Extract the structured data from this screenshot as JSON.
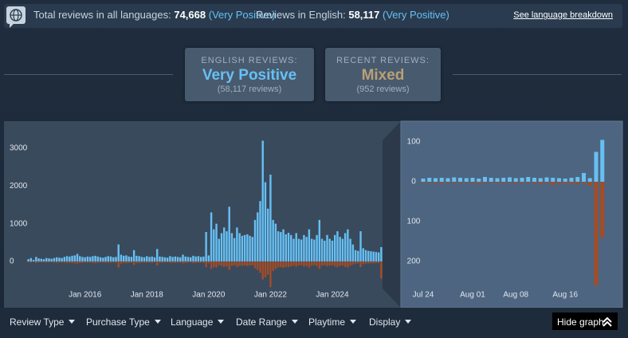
{
  "summary_bar": {
    "total_label": "Total reviews in all languages:",
    "total_count": "74,668",
    "total_rating": "(Very Positive)",
    "english_label": "Reviews in English:",
    "english_count": "58,117",
    "english_rating": "(Very Positive)",
    "breakdown_link": "See language breakdown"
  },
  "review_boxes": [
    {
      "heading": "ENGLISH REVIEWS:",
      "rating": "Very Positive",
      "count": "(58,117 reviews)"
    },
    {
      "heading": "RECENT REVIEWS:",
      "rating": "Mixed",
      "count": "(952 reviews)"
    }
  ],
  "filters": [
    "Review Type",
    "Purchase Type",
    "Language",
    "Date Range",
    "Playtime",
    "Display"
  ],
  "hide_graph": "Hide graph",
  "chart_data": [
    {
      "type": "bar",
      "x": [
        "2014-03",
        "2014-04",
        "2014-05",
        "2014-06",
        "2014-07",
        "2014-08",
        "2014-09",
        "2014-10",
        "2014-11",
        "2014-12",
        "2015-01",
        "2015-02",
        "2015-03",
        "2015-04",
        "2015-05",
        "2015-06",
        "2015-07",
        "2015-08",
        "2015-09",
        "2015-10",
        "2015-11",
        "2015-12",
        "2016-01",
        "2016-02",
        "2016-03",
        "2016-04",
        "2016-05",
        "2016-06",
        "2016-07",
        "2016-08",
        "2016-09",
        "2016-10",
        "2016-11",
        "2016-12",
        "2017-01",
        "2017-02",
        "2017-03",
        "2017-04",
        "2017-05",
        "2017-06",
        "2017-07",
        "2017-08",
        "2017-09",
        "2017-10",
        "2017-11",
        "2017-12",
        "2018-01",
        "2018-02",
        "2018-03",
        "2018-04",
        "2018-05",
        "2018-06",
        "2018-07",
        "2018-08",
        "2018-09",
        "2018-10",
        "2018-11",
        "2018-12",
        "2019-01",
        "2019-02",
        "2019-03",
        "2019-04",
        "2019-05",
        "2019-06",
        "2019-07",
        "2019-08",
        "2019-09",
        "2019-10",
        "2019-11",
        "2019-12",
        "2020-01",
        "2020-02",
        "2020-03",
        "2020-04",
        "2020-05",
        "2020-06",
        "2020-07",
        "2020-08",
        "2020-09",
        "2020-10",
        "2020-11",
        "2020-12",
        "2021-01",
        "2021-02",
        "2021-03",
        "2021-04",
        "2021-05",
        "2021-06",
        "2021-07",
        "2021-08",
        "2021-09",
        "2021-10",
        "2021-11",
        "2021-12",
        "2022-01",
        "2022-02",
        "2022-03",
        "2022-04",
        "2022-05",
        "2022-06",
        "2022-07",
        "2022-08",
        "2022-09",
        "2022-10",
        "2022-11",
        "2022-12",
        "2023-01",
        "2023-02",
        "2023-03",
        "2023-04",
        "2023-05",
        "2023-06",
        "2023-07",
        "2023-08",
        "2023-09",
        "2023-10",
        "2023-11",
        "2023-12",
        "2024-01",
        "2024-02",
        "2024-03",
        "2024-04",
        "2024-05",
        "2024-06",
        "2024-07",
        "2024-08",
        "2024-09",
        "2024-10",
        "2024-11",
        "2024-12",
        "2025-01",
        "2025-02",
        "2025-03",
        "2025-04",
        "2025-05",
        "2025-06",
        "2025-07",
        "2025-08"
      ],
      "series": [
        {
          "color": "#66c0f4",
          "values": [
            60,
            90,
            40,
            120,
            80,
            70,
            60,
            90,
            80,
            70,
            90,
            110,
            100,
            90,
            120,
            140,
            130,
            150,
            160,
            200,
            140,
            120,
            110,
            130,
            120,
            140,
            150,
            130,
            110,
            100,
            120,
            140,
            130,
            110,
            120,
            450,
            180,
            150,
            160,
            130,
            120,
            300,
            150,
            140,
            120,
            110,
            140,
            120,
            130,
            110,
            330,
            130,
            120,
            110,
            100,
            140,
            120,
            130,
            120,
            110,
            180,
            130,
            120,
            110,
            150,
            130,
            140,
            120,
            130,
            780,
            160,
            1300,
            850,
            1000,
            600,
            750,
            900,
            800,
            1450,
            750,
            620,
            900,
            750,
            680,
            700,
            720,
            680,
            650,
            1100,
            1300,
            1600,
            3200,
            2100,
            1400,
            2300,
            1100,
            1000,
            800,
            780,
            850,
            720,
            760,
            700,
            600,
            750,
            600,
            580,
            700,
            650,
            850,
            600,
            580,
            700,
            1100,
            600,
            550,
            700,
            600,
            550,
            700,
            800,
            650,
            600,
            750,
            850,
            600,
            450,
            300,
            280,
            800,
            350,
            300,
            280,
            270,
            260,
            250,
            240,
            380
          ]
        },
        {
          "color": "#a34c25",
          "values": [
            -20,
            -30,
            -15,
            -40,
            -25,
            -20,
            -20,
            -30,
            -25,
            -20,
            -30,
            -35,
            -30,
            -25,
            -35,
            -40,
            -40,
            -45,
            -50,
            -60,
            -45,
            -40,
            -30,
            -35,
            -30,
            -40,
            -45,
            -35,
            -30,
            -30,
            -35,
            -40,
            -35,
            -30,
            -35,
            -160,
            -60,
            -45,
            -50,
            -40,
            -35,
            -90,
            -45,
            -40,
            -35,
            -30,
            -40,
            -35,
            -40,
            -30,
            -110,
            -40,
            -35,
            -30,
            -30,
            -40,
            -35,
            -40,
            -35,
            -30,
            -50,
            -40,
            -35,
            -30,
            -45,
            -40,
            -40,
            -35,
            -40,
            -150,
            -50,
            -200,
            -150,
            -160,
            -100,
            -120,
            -140,
            -130,
            -220,
            -120,
            -100,
            -140,
            -120,
            -110,
            -110,
            -120,
            -110,
            -100,
            -180,
            -220,
            -300,
            -480,
            -420,
            -350,
            -680,
            -250,
            -200,
            -160,
            -150,
            -170,
            -140,
            -150,
            -130,
            -110,
            -140,
            -110,
            -100,
            -130,
            -120,
            -160,
            -110,
            -100,
            -130,
            -200,
            -110,
            -100,
            -130,
            -110,
            -100,
            -130,
            -150,
            -120,
            -110,
            -140,
            -160,
            -110,
            -80,
            -60,
            -50,
            -150,
            -70,
            -60,
            -55,
            -50,
            -50,
            -45,
            -45,
            -450
          ]
        }
      ],
      "ylim": [
        -700,
        3350
      ],
      "yticks": [
        0,
        1000,
        2000,
        3000
      ],
      "xticks": [
        {
          "value": "2016-01",
          "label": "Jan 2016"
        },
        {
          "value": "2018-01",
          "label": "Jan 2018"
        },
        {
          "value": "2020-01",
          "label": "Jan 2020"
        },
        {
          "value": "2022-01",
          "label": "Jan 2022"
        },
        {
          "value": "2024-01",
          "label": "Jan 2024"
        }
      ]
    },
    {
      "type": "bar",
      "x": [
        "Jul 24",
        "Jul 25",
        "Jul 26",
        "Jul 27",
        "Jul 28",
        "Jul 29",
        "Jul 30",
        "Jul 31",
        "Aug 01",
        "Aug 02",
        "Aug 03",
        "Aug 04",
        "Aug 05",
        "Aug 06",
        "Aug 07",
        "Aug 08",
        "Aug 09",
        "Aug 10",
        "Aug 11",
        "Aug 12",
        "Aug 13",
        "Aug 14",
        "Aug 15",
        "Aug 16",
        "Aug 17",
        "Aug 18",
        "Aug 19",
        "Aug 20",
        "Aug 21",
        "Aug 22"
      ],
      "series": [
        {
          "color": "#66c0f4",
          "values": [
            8,
            10,
            9,
            10,
            9,
            11,
            10,
            9,
            10,
            8,
            12,
            10,
            9,
            10,
            11,
            9,
            10,
            12,
            10,
            9,
            11,
            10,
            9,
            8,
            10,
            12,
            22,
            9,
            75,
            105
          ]
        },
        {
          "color": "#a34c25",
          "values": [
            -3,
            -2,
            -3,
            -4,
            -2,
            -3,
            -3,
            -2,
            -3,
            -4,
            -3,
            -2,
            -3,
            -3,
            -2,
            -4,
            -3,
            -2,
            -3,
            -6,
            -3,
            -8,
            -5,
            -4,
            -6,
            -5,
            -4,
            -10,
            -260,
            -140
          ]
        }
      ],
      "ylim": [
        -290,
        115
      ],
      "yticks": [
        100,
        0,
        {
          "value": -100,
          "label": "100"
        },
        {
          "value": -200,
          "label": "200"
        }
      ],
      "xticks": [
        "Jul 24",
        "Aug 01",
        "Aug 08",
        "Aug 16"
      ]
    }
  ]
}
